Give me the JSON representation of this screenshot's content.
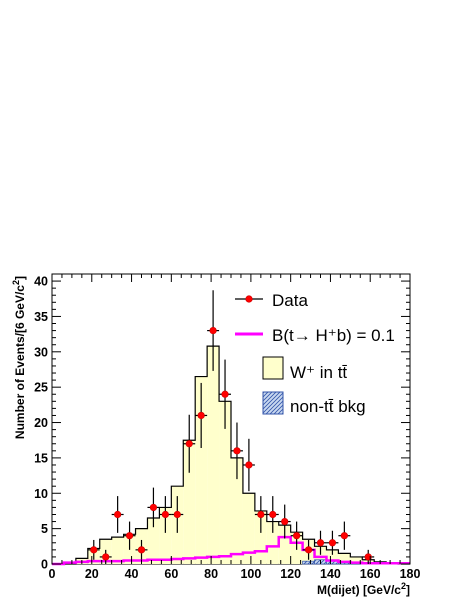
{
  "chart_data": {
    "type": "histogram",
    "xlabel": "M(dijet) [GeV/c",
    "xlabel_sup": "2",
    "xlabel_end": "]",
    "ylabel": "Number of Events/[6 GeV/c",
    "ylabel_sup": "2",
    "ylabel_end": "]",
    "xlim": [
      0,
      180
    ],
    "ylim": [
      0,
      41
    ],
    "x_ticks": [
      0,
      20,
      40,
      60,
      80,
      100,
      120,
      140,
      160,
      180
    ],
    "y_ticks": [
      0,
      5,
      10,
      15,
      20,
      25,
      30,
      35,
      40
    ],
    "bin_edges": [
      0,
      6,
      12,
      18,
      24,
      30,
      36,
      42,
      48,
      54,
      60,
      66,
      72,
      78,
      84,
      90,
      96,
      102,
      108,
      114,
      120,
      126,
      132,
      138,
      144,
      150,
      156,
      162,
      168,
      174,
      180
    ],
    "series": [
      {
        "name": "W⁺ in tt̄",
        "kind": "filled-histogram",
        "fill": "#ffffcc",
        "line": "#000000",
        "values": [
          0,
          0,
          0.8,
          2.2,
          3.5,
          3.8,
          4.2,
          5.0,
          6.5,
          8.0,
          11.0,
          17.5,
          26.5,
          30.8,
          23.0,
          15.0,
          10.0,
          7.5,
          6.0,
          5.5,
          4.5,
          3.5,
          2.5,
          2.0,
          1.5,
          1.0,
          0.6,
          0.3,
          0.1,
          0
        ]
      },
      {
        "name": "non-tt̄ bkg",
        "kind": "hatched-histogram",
        "fill": "#c8d8f0",
        "line": "#3355aa",
        "values": [
          0,
          0,
          0,
          0,
          0,
          0,
          0,
          0,
          0,
          0,
          0,
          0,
          0,
          0,
          0,
          0,
          0,
          0,
          0,
          0,
          0,
          0.4,
          0.6,
          0.4,
          0.3,
          0.2,
          0.1,
          0,
          0,
          0
        ]
      },
      {
        "name": "B(t→ H⁺b) = 0.1",
        "kind": "step-line",
        "color": "#ff00ff",
        "values": [
          0,
          0.2,
          0.3,
          0.4,
          0.4,
          0.4,
          0.5,
          0.5,
          0.6,
          0.6,
          0.7,
          0.8,
          0.9,
          1.0,
          1.1,
          1.4,
          1.6,
          1.8,
          2.5,
          3.8,
          3.0,
          2.0,
          1.0,
          0.5,
          0.3,
          0.2,
          0.1,
          0.1,
          0.1,
          0.1
        ]
      },
      {
        "name": "Data",
        "kind": "points-with-errors",
        "color": "#ff0000",
        "points": [
          {
            "x": 21,
            "y": 2,
            "err": 1.4
          },
          {
            "x": 27,
            "y": 1,
            "err": 1.0
          },
          {
            "x": 33,
            "y": 7,
            "err": 2.6
          },
          {
            "x": 39,
            "y": 4,
            "err": 2.0
          },
          {
            "x": 45,
            "y": 2,
            "err": 1.4
          },
          {
            "x": 51,
            "y": 8,
            "err": 2.8
          },
          {
            "x": 57,
            "y": 7,
            "err": 2.6
          },
          {
            "x": 63,
            "y": 7,
            "err": 2.6
          },
          {
            "x": 69,
            "y": 17,
            "err": 4.1
          },
          {
            "x": 75,
            "y": 21,
            "err": 4.6
          },
          {
            "x": 81,
            "y": 33,
            "err": 5.7
          },
          {
            "x": 87,
            "y": 24,
            "err": 4.9
          },
          {
            "x": 93,
            "y": 16,
            "err": 4.0
          },
          {
            "x": 99,
            "y": 14,
            "err": 3.7
          },
          {
            "x": 105,
            "y": 7,
            "err": 2.6
          },
          {
            "x": 111,
            "y": 7,
            "err": 2.6
          },
          {
            "x": 117,
            "y": 6,
            "err": 2.4
          },
          {
            "x": 123,
            "y": 4,
            "err": 2.0
          },
          {
            "x": 129,
            "y": 2,
            "err": 1.4
          },
          {
            "x": 135,
            "y": 3,
            "err": 1.7
          },
          {
            "x": 141,
            "y": 3,
            "err": 1.7
          },
          {
            "x": 147,
            "y": 4,
            "err": 2.0
          },
          {
            "x": 159,
            "y": 1,
            "err": 1.0
          }
        ]
      }
    ],
    "legend": {
      "placement": "top-right",
      "entries": [
        {
          "label": "Data",
          "style": "marker"
        },
        {
          "label": "B(t→ H⁺b) = 0.1",
          "style": "line"
        },
        {
          "label": "W⁺ in tt̄",
          "style": "fill-yellow"
        },
        {
          "label": "non-tt̄ bkg",
          "style": "fill-hatched"
        }
      ]
    }
  }
}
